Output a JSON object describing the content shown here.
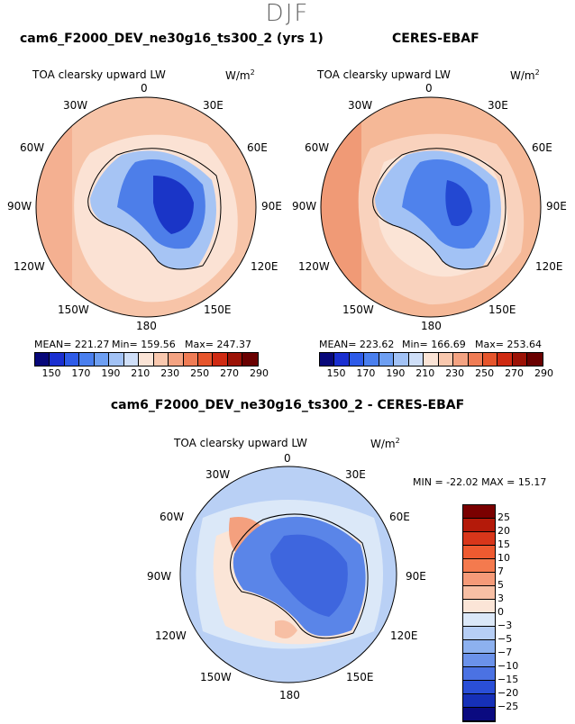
{
  "season": "DJF",
  "panel1": {
    "title": "cam6_F2000_DEV_ne30g16_ts300_2 (yrs 1)",
    "variable": "TOA clearsky upward LW",
    "units": "W/m",
    "units_exp": "2",
    "stats": {
      "mean": "MEAN= 221.27",
      "min": "Min= 159.56",
      "max": "Max= 247.37"
    }
  },
  "panel2": {
    "title": "CERES-EBAF",
    "variable": "TOA clearsky upward LW",
    "units": "W/m",
    "units_exp": "2",
    "stats": {
      "mean": "MEAN= 223.62",
      "min": "Min= 166.69",
      "max": "Max= 253.64"
    }
  },
  "panel3": {
    "title": "cam6_F2000_DEV_ne30g16_ts300_2 - CERES-EBAF",
    "variable": "TOA clearsky upward LW",
    "units": "W/m",
    "units_exp": "2",
    "minmax": "MIN = -22.02  MAX =  15.17"
  },
  "lon_labels": {
    "l0": "0",
    "l30e": "30E",
    "l60e": "60E",
    "l90e": "90E",
    "l120e": "120E",
    "l150e": "150E",
    "l180": "180",
    "l150w": "150W",
    "l120w": "120W",
    "l90w": "90W",
    "l60w": "60W",
    "l30w": "30W"
  },
  "abs_colorbar": {
    "colors": [
      "#08087a",
      "#1a2fd0",
      "#2e5be8",
      "#4a7fee",
      "#6e9ff2",
      "#a2c2f5",
      "#cfdff8",
      "#fbe4d6",
      "#f9c8ae",
      "#f4a382",
      "#ef7c55",
      "#e6552c",
      "#cf2a12",
      "#9c1206",
      "#6a0000"
    ],
    "ticks": [
      "150",
      "170",
      "190",
      "210",
      "230",
      "250",
      "270",
      "290"
    ]
  },
  "diff_colorbar": {
    "colors": [
      "#7a0000",
      "#b41a0a",
      "#d8361a",
      "#ee5a30",
      "#f47a4e",
      "#f59a78",
      "#f7bfa4",
      "#fbe5d7",
      "#dbe8f8",
      "#b6cef5",
      "#8db1ef",
      "#6b92ea",
      "#4b72e3",
      "#2a4fd7",
      "#1630b8",
      "#0a0a80"
    ],
    "labels": [
      "25",
      "20",
      "15",
      "10",
      "7",
      "5",
      "3",
      "0",
      "−3",
      "−5",
      "−7",
      "−10",
      "−15",
      "−20",
      "−25"
    ]
  }
}
